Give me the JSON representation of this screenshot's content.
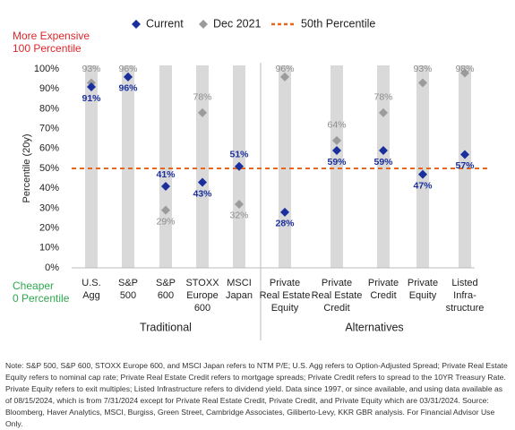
{
  "chart_data": {
    "type": "dot",
    "ylabel": "Percentile (20y)",
    "categories": [
      [
        "U.S.",
        "Agg"
      ],
      [
        "S&P",
        "500"
      ],
      [
        "S&P",
        "600"
      ],
      [
        "STOXX",
        "Europe",
        "600"
      ],
      [
        "MSCI",
        "Japan"
      ],
      [
        "Private",
        "Real Estate",
        "Equity"
      ],
      [
        "Private",
        "Real Estate",
        "Credit"
      ],
      [
        "Private",
        "Credit"
      ],
      [
        "Private",
        "Equity"
      ],
      [
        "Listed",
        "Infra-",
        "structure"
      ]
    ],
    "series": [
      {
        "name": "Current",
        "color": "#1a2f9c",
        "values": [
          91,
          96,
          41,
          43,
          51,
          28,
          59,
          59,
          47,
          57
        ],
        "value_labels": [
          "91%",
          "96%",
          "41%",
          "43%",
          "51%",
          "28%",
          "59%",
          "59%",
          "47%",
          "57%"
        ]
      },
      {
        "name": "Dec 2021",
        "color": "#9b9b9b",
        "values": [
          93,
          96,
          29,
          78,
          32,
          96,
          64,
          78,
          93,
          98
        ],
        "value_labels": [
          "93%",
          "96%",
          "29%",
          "78%",
          "32%",
          "96%",
          "64%",
          "78%",
          "93%",
          "98%"
        ]
      }
    ],
    "reference_line": {
      "name": "50th Percentile",
      "value": 50,
      "color": "#e8661c"
    },
    "ylim": [
      0,
      100
    ],
    "yticks": [
      {
        "value": 0,
        "label": "0%"
      },
      {
        "value": 10,
        "label": "10%"
      },
      {
        "value": 20,
        "label": "20%"
      },
      {
        "value": 30,
        "label": "30%"
      },
      {
        "value": 40,
        "label": "40%"
      },
      {
        "value": 50,
        "label": "50%"
      },
      {
        "value": 60,
        "label": "60%"
      },
      {
        "value": 70,
        "label": "70%"
      },
      {
        "value": 80,
        "label": "80%"
      },
      {
        "value": 90,
        "label": "90%"
      },
      {
        "value": 100,
        "label": "100%"
      }
    ],
    "annotations": {
      "top": [
        "More Expensive",
        "100 Percentile"
      ],
      "bottom": [
        "Cheaper",
        "0 Percentile"
      ],
      "groups": [
        "Traditional",
        "Alternatives"
      ]
    },
    "note": "Note: S&P 500, S&P 600, STOXX Europe 600, and MSCI Japan refers to NTM P/E; U.S. Agg refers to Option-Adjusted Spread; Private Real Estate Equity refers to nominal cap rate; Private Real Estate Credit refers to mortgage spreads; Private Credit refers to spread to the 10YR Treasury Rate. Private Equity refers to exit multiples; Listed Infrastructure refers to dividend yield. Data since 1997, or since available, and using data available as of 08/15/2024, which is from 7/31/2024 except for Private Real Estate Credit, Private Credit, and Private Equity which are 03/31/2024. Source: Bloomberg, Haver Analytics, MSCI, Burgiss, Green Street, Cambridge Associates, Giliberto-Levy, KKR GBR analysis. For Financial Advisor Use Only."
  }
}
